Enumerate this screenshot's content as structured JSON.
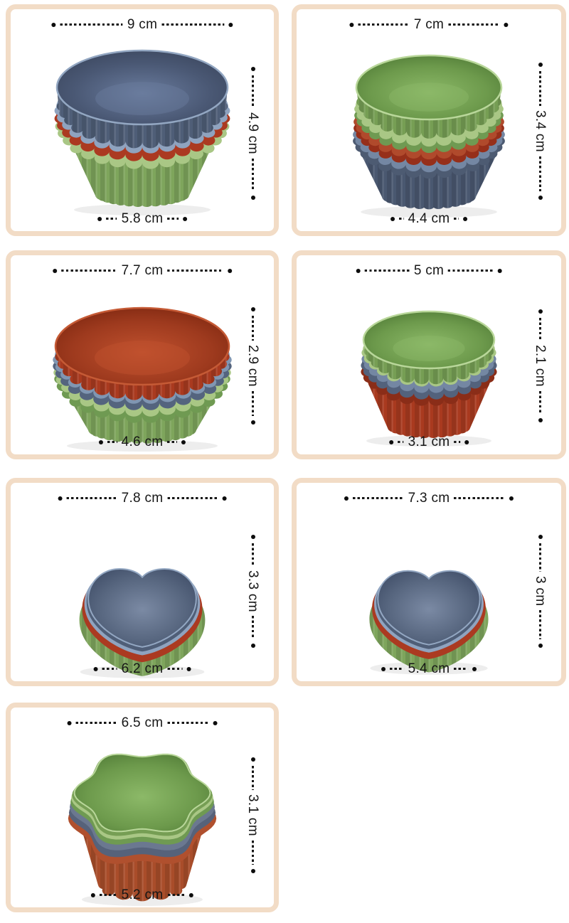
{
  "units": "cm",
  "colors": {
    "panel_border": "#f2dcc6",
    "dimension_line": "#161616",
    "cup_slate_blue": "#4f5e77",
    "cup_slate_blue_light": "#8fa3bf",
    "cup_navy_body": "#4a5870",
    "cup_brick_red": "#ab3a21",
    "cup_orange_red": "#b04a2c",
    "cup_terracotta": "#a94d2a",
    "cup_green": "#7ea55c",
    "cup_green_light": "#a9c785",
    "cup_green_dark": "#6f9a52"
  },
  "panels": [
    {
      "top_width": "9 cm",
      "height": "4.9 cm",
      "bottom_width": "5.8 cm"
    },
    {
      "top_width": "7 cm",
      "height": "3.4 cm",
      "bottom_width": "4.4 cm"
    },
    {
      "top_width": "7.7 cm",
      "height": "2.9 cm",
      "bottom_width": "4.6 cm"
    },
    {
      "top_width": "5 cm",
      "height": "2.1 cm",
      "bottom_width": "3.1 cm"
    },
    {
      "top_width": "7.8 cm",
      "height": "3.3 cm",
      "bottom_width": "6.2 cm"
    },
    {
      "top_width": "7.3 cm",
      "height": "3 cm",
      "bottom_width": "5.4 cm"
    },
    {
      "top_width": "6.5 cm",
      "height": "3.1 cm",
      "bottom_width": "5.2 cm"
    }
  ]
}
